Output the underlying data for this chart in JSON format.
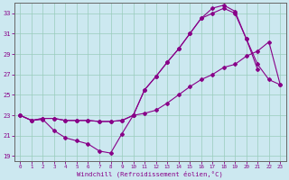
{
  "xlabel": "Windchill (Refroidissement éolien,°C)",
  "bg_color": "#cce8f0",
  "line_color": "#880088",
  "grid_color": "#99ccbb",
  "xlim": [
    -0.5,
    23.5
  ],
  "ylim": [
    18.5,
    34.0
  ],
  "yticks": [
    19,
    21,
    23,
    25,
    27,
    29,
    31,
    33
  ],
  "xticks": [
    0,
    1,
    2,
    3,
    4,
    5,
    6,
    7,
    8,
    9,
    10,
    11,
    12,
    13,
    14,
    15,
    16,
    17,
    18,
    19,
    20,
    21,
    22,
    23
  ],
  "line1_x": [
    0,
    1,
    2,
    3,
    4,
    5,
    6,
    7,
    8,
    9,
    10,
    11,
    12,
    13,
    14,
    15,
    16,
    17,
    18,
    19,
    20,
    21,
    22,
    23
  ],
  "line1_y": [
    23.0,
    22.5,
    22.6,
    21.5,
    20.8,
    20.5,
    20.2,
    19.5,
    19.3,
    21.2,
    23.0,
    23.2,
    23.5,
    24.2,
    25.0,
    25.8,
    26.5,
    27.0,
    27.7,
    28.0,
    28.8,
    29.3,
    30.2,
    26.0
  ],
  "line2_x": [
    0,
    1,
    2,
    3,
    4,
    5,
    6,
    7,
    8,
    9,
    10,
    11,
    12,
    13,
    14,
    15,
    16,
    17,
    18,
    19,
    20,
    21
  ],
  "line2_y": [
    23.0,
    22.5,
    22.7,
    22.7,
    22.5,
    22.5,
    22.5,
    22.4,
    22.4,
    22.5,
    23.0,
    25.5,
    26.8,
    28.2,
    29.5,
    31.0,
    32.5,
    33.5,
    33.8,
    33.2,
    30.5,
    27.5
  ],
  "line3_x": [
    0,
    1,
    2,
    3,
    4,
    5,
    6,
    7,
    8,
    9,
    10,
    11,
    12,
    13,
    14,
    15,
    16,
    17,
    18,
    19,
    20,
    21,
    22,
    23
  ],
  "line3_y": [
    23.0,
    22.5,
    22.7,
    22.7,
    22.5,
    22.5,
    22.5,
    22.4,
    22.4,
    22.5,
    23.0,
    25.5,
    26.8,
    28.2,
    29.5,
    31.0,
    32.5,
    33.0,
    33.5,
    33.0,
    30.5,
    28.0,
    26.5,
    26.0
  ]
}
